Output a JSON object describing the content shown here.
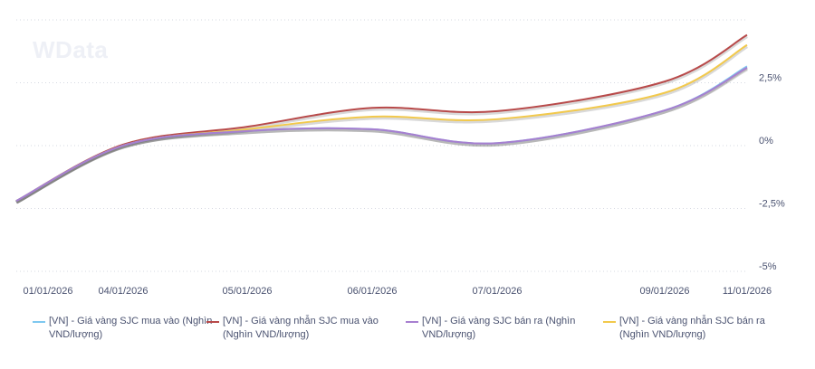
{
  "watermark": "WData",
  "chart_data": {
    "type": "line",
    "categories": [
      "01/01/2026",
      "04/01/2026",
      "05/01/2026",
      "06/01/2026",
      "07/01/2026",
      "09/01/2026",
      "11/01/2026"
    ],
    "ylim": [
      -5,
      5
    ],
    "yticks": [
      2.5,
      0,
      -2.5,
      -5
    ],
    "ytick_labels": [
      "2,5%",
      "0%",
      "-2,5%",
      "-5%"
    ],
    "grid": true,
    "legend_position": "bottom",
    "series": [
      {
        "name": "[VN] - Giá vàng SJC mua vào (Nghìn VND/lượng)",
        "color": "#7ec8f0",
        "values": [
          -2.2,
          0.0,
          0.58,
          0.65,
          0.1,
          1.4,
          3.15
        ]
      },
      {
        "name": "[VN] - Giá vàng nhẫn SJC mua vào (Nghìn VND/lượng)",
        "color": "#b84a4a",
        "values": [
          -2.2,
          0.04,
          0.75,
          1.5,
          1.37,
          2.55,
          4.4
        ]
      },
      {
        "name": "[VN] - Giá vàng SJC bán ra (Nghìn VND/lượng)",
        "color": "#a77fd0",
        "values": [
          -2.2,
          0.0,
          0.58,
          0.65,
          0.1,
          1.4,
          3.1
        ]
      },
      {
        "name": "[VN] - Giá vàng nhẫn SJC bán ra (Nghìn VND/lượng)",
        "color": "#f2c94c",
        "values": [
          -2.2,
          0.0,
          0.65,
          1.15,
          1.05,
          2.1,
          4.0
        ]
      }
    ]
  }
}
